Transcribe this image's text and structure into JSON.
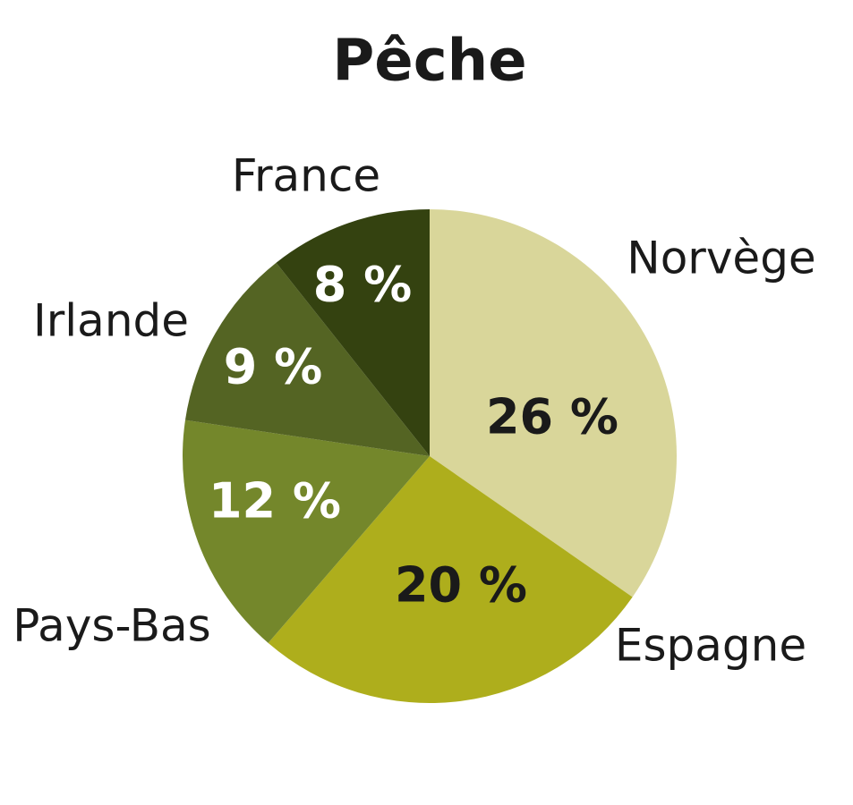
{
  "chart_data": {
    "type": "pie",
    "title": "Pêche",
    "categories": [
      "Norvège",
      "Espagne",
      "Pays-Bas",
      "Irlande",
      "France"
    ],
    "values": [
      26,
      20,
      12,
      9,
      8
    ],
    "value_labels": [
      "26 %",
      "20 %",
      "12 %",
      "9 %",
      "8 %"
    ],
    "colors": [
      "#d9d69a",
      "#aeae1c",
      "#74872b",
      "#546423",
      "#344210"
    ]
  }
}
